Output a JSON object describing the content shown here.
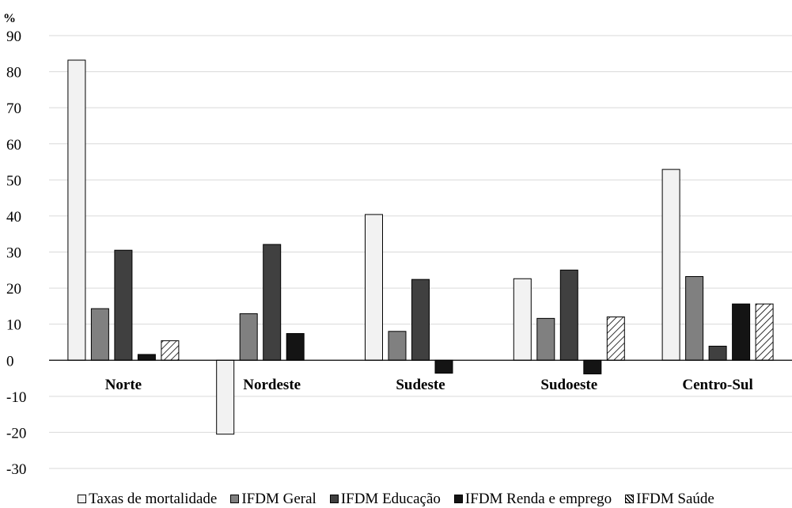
{
  "chart_data": {
    "type": "bar",
    "y_unit_label": "%",
    "categories": [
      "Norte",
      "Nordeste",
      "Sudeste",
      "Sudoeste",
      "Centro-Sul"
    ],
    "series": [
      {
        "name": "Taxas de mortalidade",
        "color": "#f2f2f2",
        "values": [
          83.2,
          -20.5,
          40.4,
          22.6,
          52.9
        ]
      },
      {
        "name": "IFDM Geral",
        "color": "#808080",
        "values": [
          14.3,
          12.9,
          8.0,
          11.6,
          23.2
        ]
      },
      {
        "name": "IFDM Educação",
        "color": "#404040",
        "values": [
          30.5,
          32.1,
          22.4,
          25.0,
          3.9
        ]
      },
      {
        "name": "IFDM Renda e emprego",
        "color": "#141414",
        "values": [
          1.6,
          7.4,
          -3.6,
          -3.8,
          15.6
        ]
      },
      {
        "name": "IFDM Saúde",
        "color": "hatch",
        "values": [
          5.4,
          0,
          0,
          12.0,
          15.6
        ]
      }
    ],
    "ylim": [
      -30,
      90
    ],
    "yticks": [
      90,
      80,
      70,
      60,
      50,
      40,
      30,
      20,
      10,
      0,
      -10,
      -20,
      -30
    ],
    "grid": true,
    "legend_position": "bottom"
  }
}
